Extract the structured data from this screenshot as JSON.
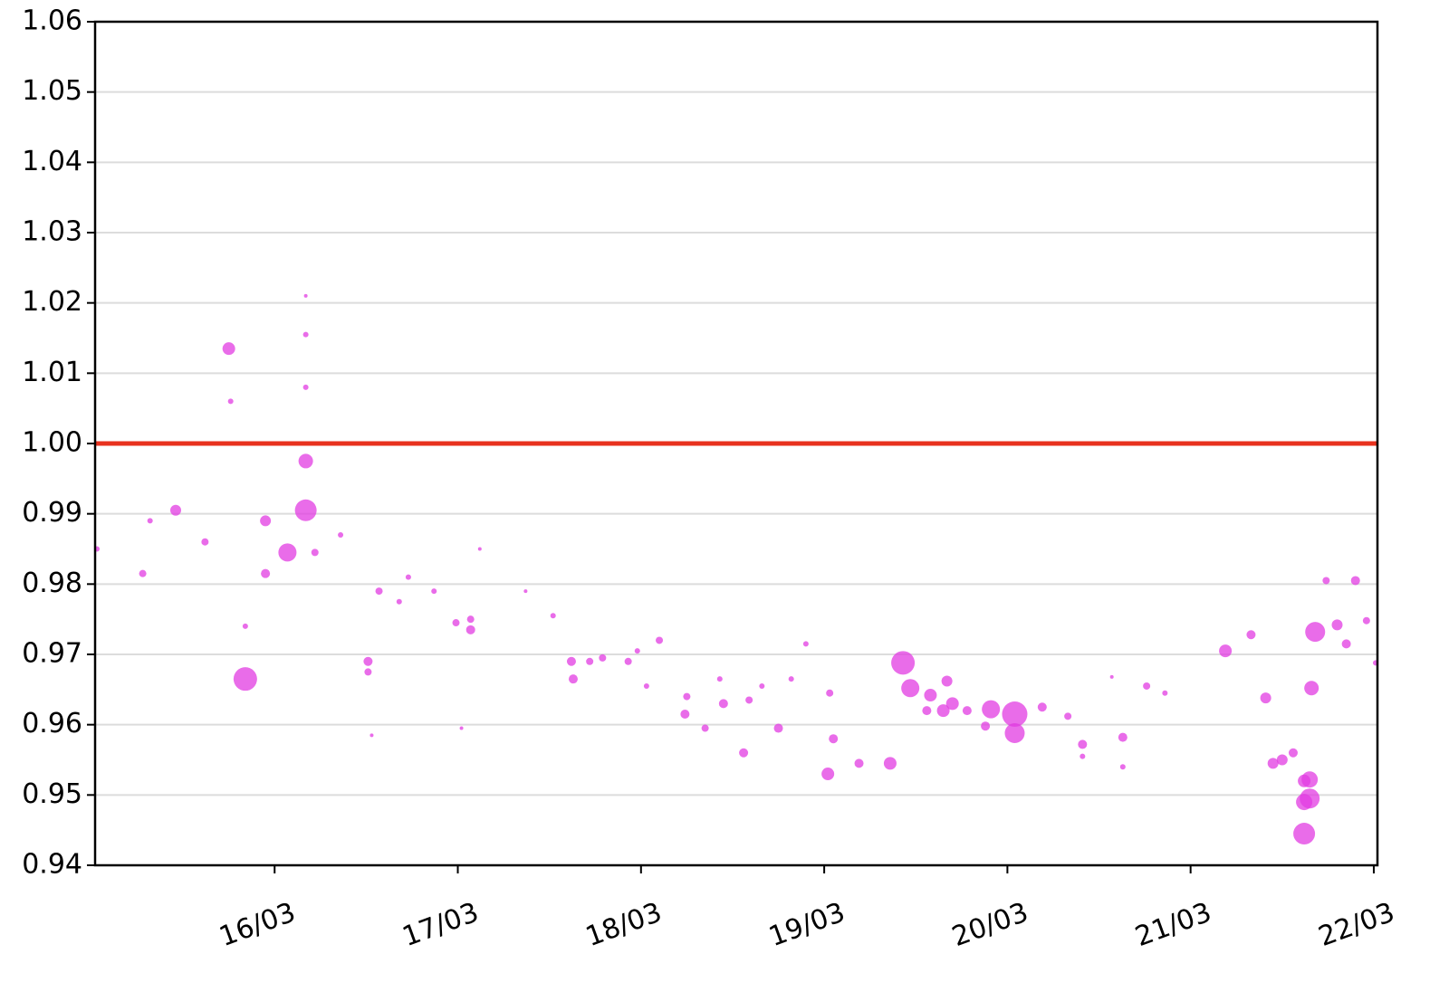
{
  "chart_data": {
    "type": "scatter",
    "color": "#e23be2",
    "hline": {
      "value": 1.0,
      "color": "#e8321e"
    },
    "grid": true,
    "xlim": [
      15.02,
      22.02
    ],
    "ylim": [
      0.94,
      1.06
    ],
    "xticks": [
      {
        "value": 16,
        "label": "16/03"
      },
      {
        "value": 17,
        "label": "17/03"
      },
      {
        "value": 18,
        "label": "18/03"
      },
      {
        "value": 19,
        "label": "19/03"
      },
      {
        "value": 20,
        "label": "20/03"
      },
      {
        "value": 21,
        "label": "21/03"
      },
      {
        "value": 22,
        "label": "22/03"
      }
    ],
    "yticks": [
      {
        "value": 0.94,
        "label": "0.94"
      },
      {
        "value": 0.95,
        "label": "0.95"
      },
      {
        "value": 0.96,
        "label": "0.96"
      },
      {
        "value": 0.97,
        "label": "0.97"
      },
      {
        "value": 0.98,
        "label": "0.98"
      },
      {
        "value": 0.99,
        "label": "0.99"
      },
      {
        "value": 1.0,
        "label": "1.00"
      },
      {
        "value": 1.01,
        "label": "1.01"
      },
      {
        "value": 1.02,
        "label": "1.02"
      },
      {
        "value": 1.03,
        "label": "1.03"
      },
      {
        "value": 1.04,
        "label": "1.04"
      },
      {
        "value": 1.05,
        "label": "1.05"
      },
      {
        "value": 1.06,
        "label": "1.06"
      }
    ],
    "x": [
      15.03,
      15.28,
      15.32,
      15.46,
      15.62,
      15.75,
      15.76,
      15.84,
      15.84,
      15.95,
      15.95,
      16.07,
      16.17,
      16.17,
      16.17,
      16.17,
      16.17,
      16.22,
      16.36,
      16.51,
      16.51,
      16.53,
      16.57,
      16.68,
      16.73,
      16.87,
      16.99,
      17.07,
      17.07,
      17.02,
      17.12,
      17.37,
      17.52,
      17.62,
      17.63,
      17.72,
      17.79,
      17.93,
      17.98,
      18.03,
      18.1,
      18.25,
      18.24,
      18.35,
      18.43,
      18.45,
      18.56,
      18.59,
      18.66,
      18.75,
      18.82,
      18.9,
      19.02,
      19.03,
      19.05,
      19.19,
      19.36,
      19.43,
      19.47,
      19.56,
      19.58,
      19.65,
      19.67,
      19.7,
      19.78,
      19.91,
      19.88,
      20.04,
      20.04,
      20.19,
      20.33,
      20.41,
      20.41,
      20.57,
      20.63,
      20.63,
      20.76,
      20.86,
      21.19,
      21.33,
      21.41,
      21.45,
      21.5,
      21.56,
      21.62,
      21.62,
      21.62,
      21.65,
      21.65,
      21.66,
      21.68,
      21.74,
      21.8,
      21.85,
      21.9,
      21.96,
      22.01
    ],
    "values": [
      0.985,
      0.9815,
      0.989,
      0.9905,
      0.986,
      1.0135,
      1.006,
      0.9665,
      0.974,
      0.989,
      0.9815,
      0.9845,
      0.9905,
      0.9975,
      1.0155,
      1.021,
      1.008,
      0.9845,
      0.987,
      0.969,
      0.9675,
      0.9585,
      0.979,
      0.9775,
      0.981,
      0.979,
      0.9745,
      0.9735,
      0.975,
      0.9595,
      0.985,
      0.979,
      0.9755,
      0.969,
      0.9665,
      0.969,
      0.9695,
      0.969,
      0.9705,
      0.9655,
      0.972,
      0.964,
      0.9615,
      0.9595,
      0.9665,
      0.963,
      0.956,
      0.9635,
      0.9655,
      0.9595,
      0.9665,
      0.9715,
      0.953,
      0.9645,
      0.958,
      0.9545,
      0.9545,
      0.9688,
      0.9652,
      0.962,
      0.9642,
      0.962,
      0.9662,
      0.963,
      0.962,
      0.9622,
      0.9598,
      0.9615,
      0.9588,
      0.9625,
      0.9612,
      0.9572,
      0.9555,
      0.9668,
      0.9582,
      0.954,
      0.9655,
      0.9645,
      0.9705,
      0.9728,
      0.9638,
      0.9545,
      0.955,
      0.956,
      0.9445,
      0.949,
      0.952,
      0.9522,
      0.9495,
      0.9652,
      0.9732,
      0.9805,
      0.9742,
      0.9715,
      0.9805,
      0.9748,
      0.9688
    ],
    "sizes": [
      3,
      4,
      3,
      6,
      4,
      7,
      3,
      13,
      3,
      6,
      5,
      10,
      12,
      8,
      3,
      2,
      3,
      4,
      3,
      5,
      4,
      2,
      4,
      3,
      3,
      3,
      4,
      5,
      4,
      2,
      2,
      2,
      3,
      5,
      5,
      4,
      4,
      4,
      3,
      3,
      4,
      4,
      5,
      4,
      3,
      5,
      5,
      4,
      3,
      5,
      3,
      3,
      7,
      4,
      5,
      5,
      7,
      13,
      10,
      5,
      7,
      7,
      6,
      7,
      5,
      10,
      5,
      14,
      11,
      5,
      4,
      5,
      3,
      2,
      5,
      3,
      4,
      3,
      7,
      5,
      6,
      6,
      6,
      5,
      12,
      9,
      7,
      9,
      11,
      8,
      11,
      4,
      6,
      5,
      5,
      4,
      3
    ]
  }
}
